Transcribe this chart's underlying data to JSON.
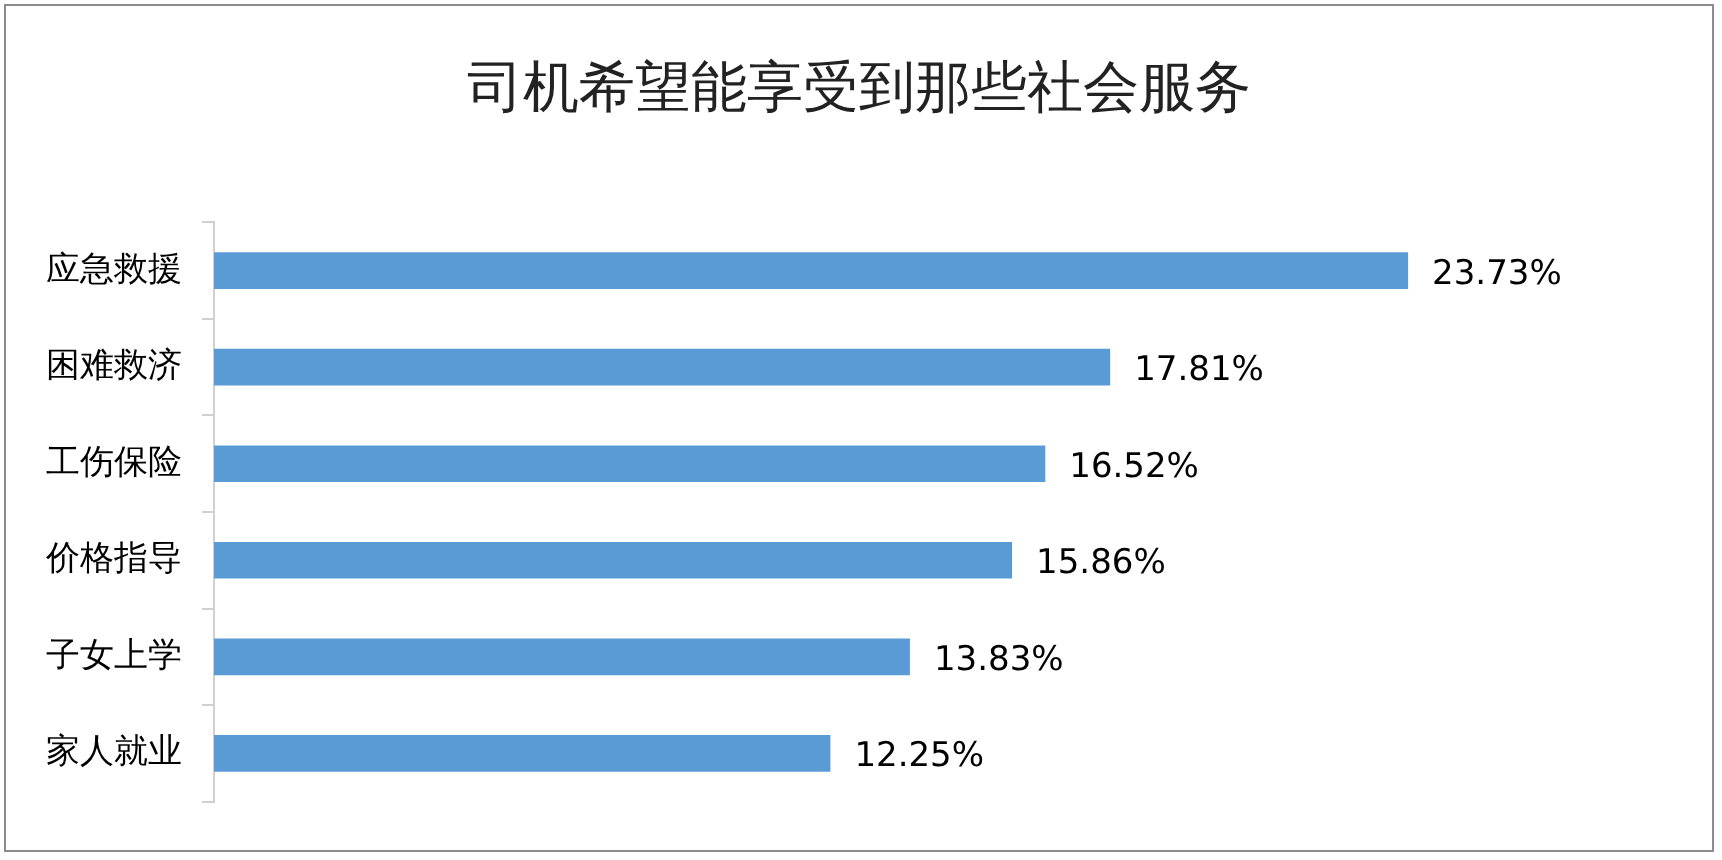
{
  "chart_data": {
    "type": "bar",
    "title": "司机希望能享受到那些社会服务",
    "orientation": "horizontal",
    "categories": [
      "应急救援",
      "困难救济",
      "工伤保险",
      "价格指导",
      "子女上学",
      "家人就业"
    ],
    "values": [
      23.73,
      17.81,
      16.52,
      15.86,
      13.83,
      12.25
    ],
    "value_labels": [
      "23.73%",
      "17.81%",
      "16.52%",
      "15.86%",
      "13.83%",
      "12.25%"
    ],
    "color": "#5b9bd5",
    "tick_labels": "y",
    "grid": false,
    "legend": false
  }
}
